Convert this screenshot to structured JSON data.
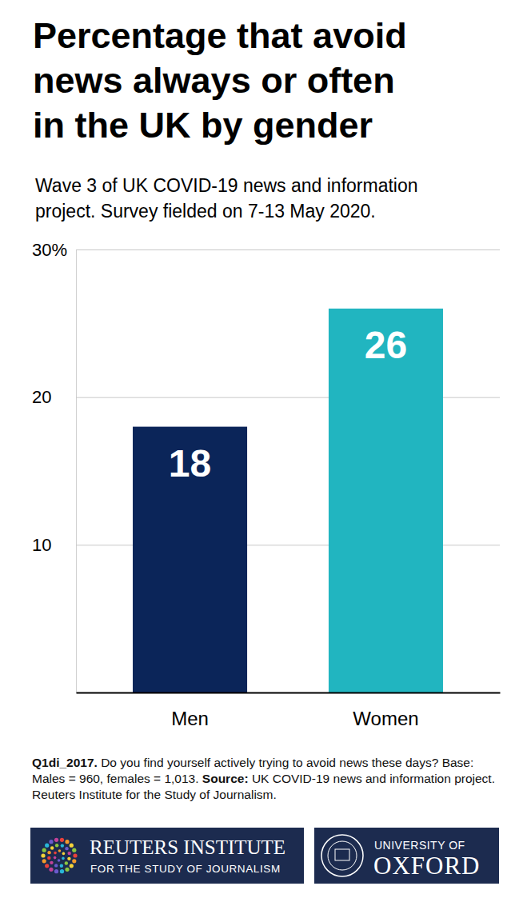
{
  "chart_data": {
    "type": "bar",
    "title": [
      "Percentage that avoid",
      "news always or often",
      "in the UK by gender"
    ],
    "subtitle": [
      "Wave 3 of UK COVID-19 news and information",
      "project. Survey fielded on 7-13 May 2020."
    ],
    "categories": [
      "Men",
      "Women"
    ],
    "values": [
      18,
      26
    ],
    "colors": [
      "#0b2559",
      "#21b5c0"
    ],
    "ylim": [
      0,
      30
    ],
    "yticks": [
      10,
      20,
      {
        "value": 30,
        "label": "30%"
      }
    ],
    "grid": true,
    "data_labels": true,
    "footnote": {
      "question_id": "Q1di_2017.",
      "question": "Do you find yourself actively trying to avoid news these days? Base: Males = 960, females = 1,013.",
      "source_label": "Source:",
      "source": "UK COVID-19 news and information project. Reuters Institute for the Study of Journalism."
    },
    "logos": [
      [
        "REUTERS INSTITUTE",
        "FOR THE STUDY OF JOURNALISM"
      ],
      [
        "UNIVERSITY OF",
        "OXFORD"
      ]
    ]
  }
}
